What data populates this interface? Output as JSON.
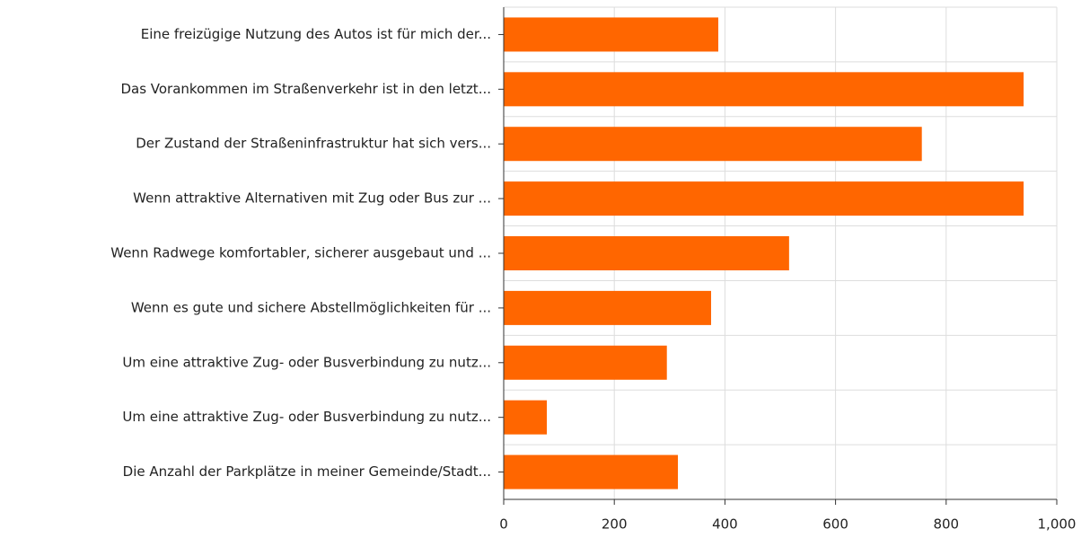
{
  "chart_data": {
    "type": "barh",
    "categories": [
      "Eine freizügige Nutzung des Autos ist für mich der...",
      "Das Vorankommen im Straßenverkehr ist in den letzt...",
      "Der Zustand der Straßeninfrastruktur hat sich vers...",
      "Wenn attraktive Alternativen mit Zug oder Bus zur ...",
      "Wenn Radwege komfortabler, sicherer ausgebaut und ...",
      "Wenn es gute und sichere Abstellmöglichkeiten für ...",
      "Um eine attraktive Zug- oder Busverbindung zu nutz...",
      "Um eine attraktive Zug- oder Busverbindung zu nutz...",
      "Die Anzahl der Parkplätze in meiner Gemeinde/Stadt..."
    ],
    "values": [
      388,
      940,
      756,
      940,
      516,
      375,
      295,
      78,
      315
    ],
    "color": "#ff6600",
    "xlim": [
      0,
      1000
    ],
    "xticks": [
      0,
      200,
      400,
      600,
      800,
      {
        "value": 1000,
        "label": "1,000"
      }
    ],
    "grid": true
  }
}
